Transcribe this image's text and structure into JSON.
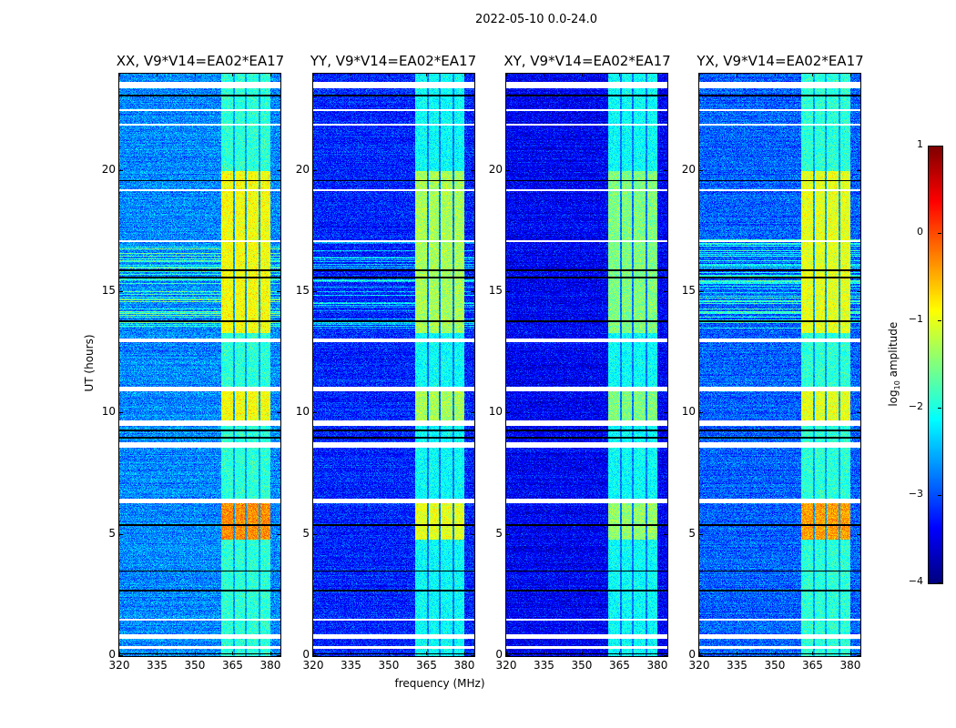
{
  "chart_data": {
    "type": "heatmap",
    "title": "2022-05-10 0.0-24.0",
    "xlabel": "frequency (MHz)",
    "ylabel": "UT (hours)",
    "xlim": [
      320,
      384
    ],
    "ylim": [
      0,
      24
    ],
    "xticks": [
      320,
      335,
      350,
      365,
      380
    ],
    "xtick_labels": [
      "320",
      "335",
      "350",
      "365",
      "380"
    ],
    "yticks": [
      0,
      5,
      10,
      15,
      20
    ],
    "ytick_labels": [
      "0",
      "5",
      "10",
      "15",
      "20"
    ],
    "colormap": "jet",
    "colorbar": {
      "label_prefix": "log",
      "label_sub": "10",
      "label_suffix": " amplitude",
      "range": [
        -4,
        1
      ],
      "ticks": [
        1,
        0,
        -1,
        -2,
        -3,
        -4
      ],
      "tick_labels": [
        "1",
        "0",
        "−1",
        "−2",
        "−3",
        "−4"
      ]
    },
    "features": {
      "flagged_ut": [
        [
          23.4,
          23.65
        ],
        [
          22.45,
          22.55
        ],
        [
          21.85,
          21.95
        ],
        [
          19.15,
          19.25
        ],
        [
          17.05,
          17.15
        ],
        [
          12.95,
          13.1
        ],
        [
          10.9,
          11.1
        ],
        [
          9.5,
          9.7
        ],
        [
          8.6,
          8.8
        ],
        [
          6.3,
          6.5
        ],
        [
          1.45,
          1.55
        ],
        [
          0.7,
          0.9
        ],
        [
          0.3,
          0.4
        ]
      ],
      "dropout_ut": [
        23.1,
        19.6,
        15.9,
        15.6,
        13.8,
        9.3,
        9.0,
        5.4,
        3.5,
        2.7,
        0.1
      ],
      "rfi_channels_mhz": [
        [
          360.5,
          365.3
        ],
        [
          366,
          370
        ],
        [
          370.8,
          375.3
        ],
        [
          376,
          380
        ]
      ],
      "rfi_active_ut": [
        [
          13.3,
          20.0
        ],
        [
          15.8,
          17.0
        ],
        [
          9.7,
          10.9
        ],
        [
          4.8,
          6.3
        ]
      ],
      "streaky_ut": [
        13.5,
        17.2
      ]
    },
    "panels": [
      {
        "title": "XX, V9*V14=EA02*EA17",
        "background_log_amp": -2.7,
        "rfi_quiet_log_amp": -1.9,
        "rfi_active_log_amp": -0.9,
        "rfi_peak_log_amp": -0.3,
        "streaky": true
      },
      {
        "title": "YY, V9*V14=EA02*EA17",
        "background_log_amp": -3.2,
        "rfi_quiet_log_amp": -2.1,
        "rfi_active_log_amp": -1.3,
        "rfi_peak_log_amp": -1.0,
        "streaky": true
      },
      {
        "title": "XY, V9*V14=EA02*EA17",
        "background_log_amp": -3.4,
        "rfi_quiet_log_amp": -2.1,
        "rfi_active_log_amp": -1.5,
        "rfi_peak_log_amp": -1.4,
        "streaky": false
      },
      {
        "title": "YX, V9*V14=EA02*EA17",
        "background_log_amp": -2.9,
        "rfi_quiet_log_amp": -1.9,
        "rfi_active_log_amp": -1.0,
        "rfi_peak_log_amp": -0.4,
        "streaky": true
      }
    ]
  }
}
